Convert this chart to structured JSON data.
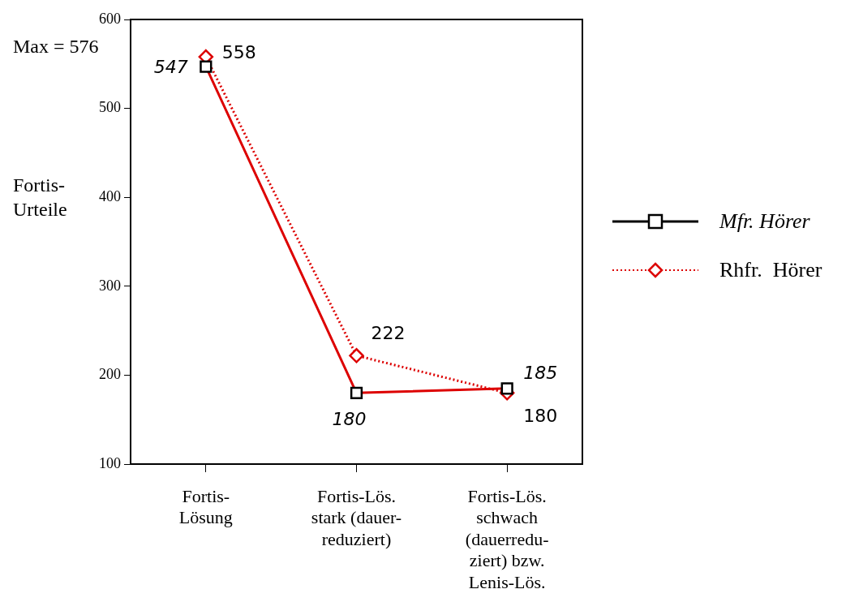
{
  "chart_data": {
    "type": "line",
    "categories": [
      "Fortis-\nLösung",
      "Fortis-Lös.\nstark (dauer-\nreduziert)",
      "Fortis-Lös.\nschwach\n(dauerredu-\nziert) bzw.\nLenis-Lös."
    ],
    "ylabel": "Fortis-\nUrteile",
    "series": [
      {
        "name": "Mfr. Hörer",
        "color": "#dd0000",
        "values": [
          547,
          180,
          185
        ],
        "marker": "square",
        "line_style": "solid"
      },
      {
        "name": "Rhfr.  Hörer",
        "color": "#dd0000",
        "values": [
          558,
          222,
          180
        ],
        "marker": "diamond",
        "line_style": "dotted"
      }
    ],
    "ylim": [
      100,
      600
    ],
    "yticks": [
      100,
      200,
      300,
      400,
      500,
      600
    ],
    "grid": false,
    "legend": "right",
    "data_labels": true,
    "annotations": [
      "Max = 576"
    ]
  }
}
